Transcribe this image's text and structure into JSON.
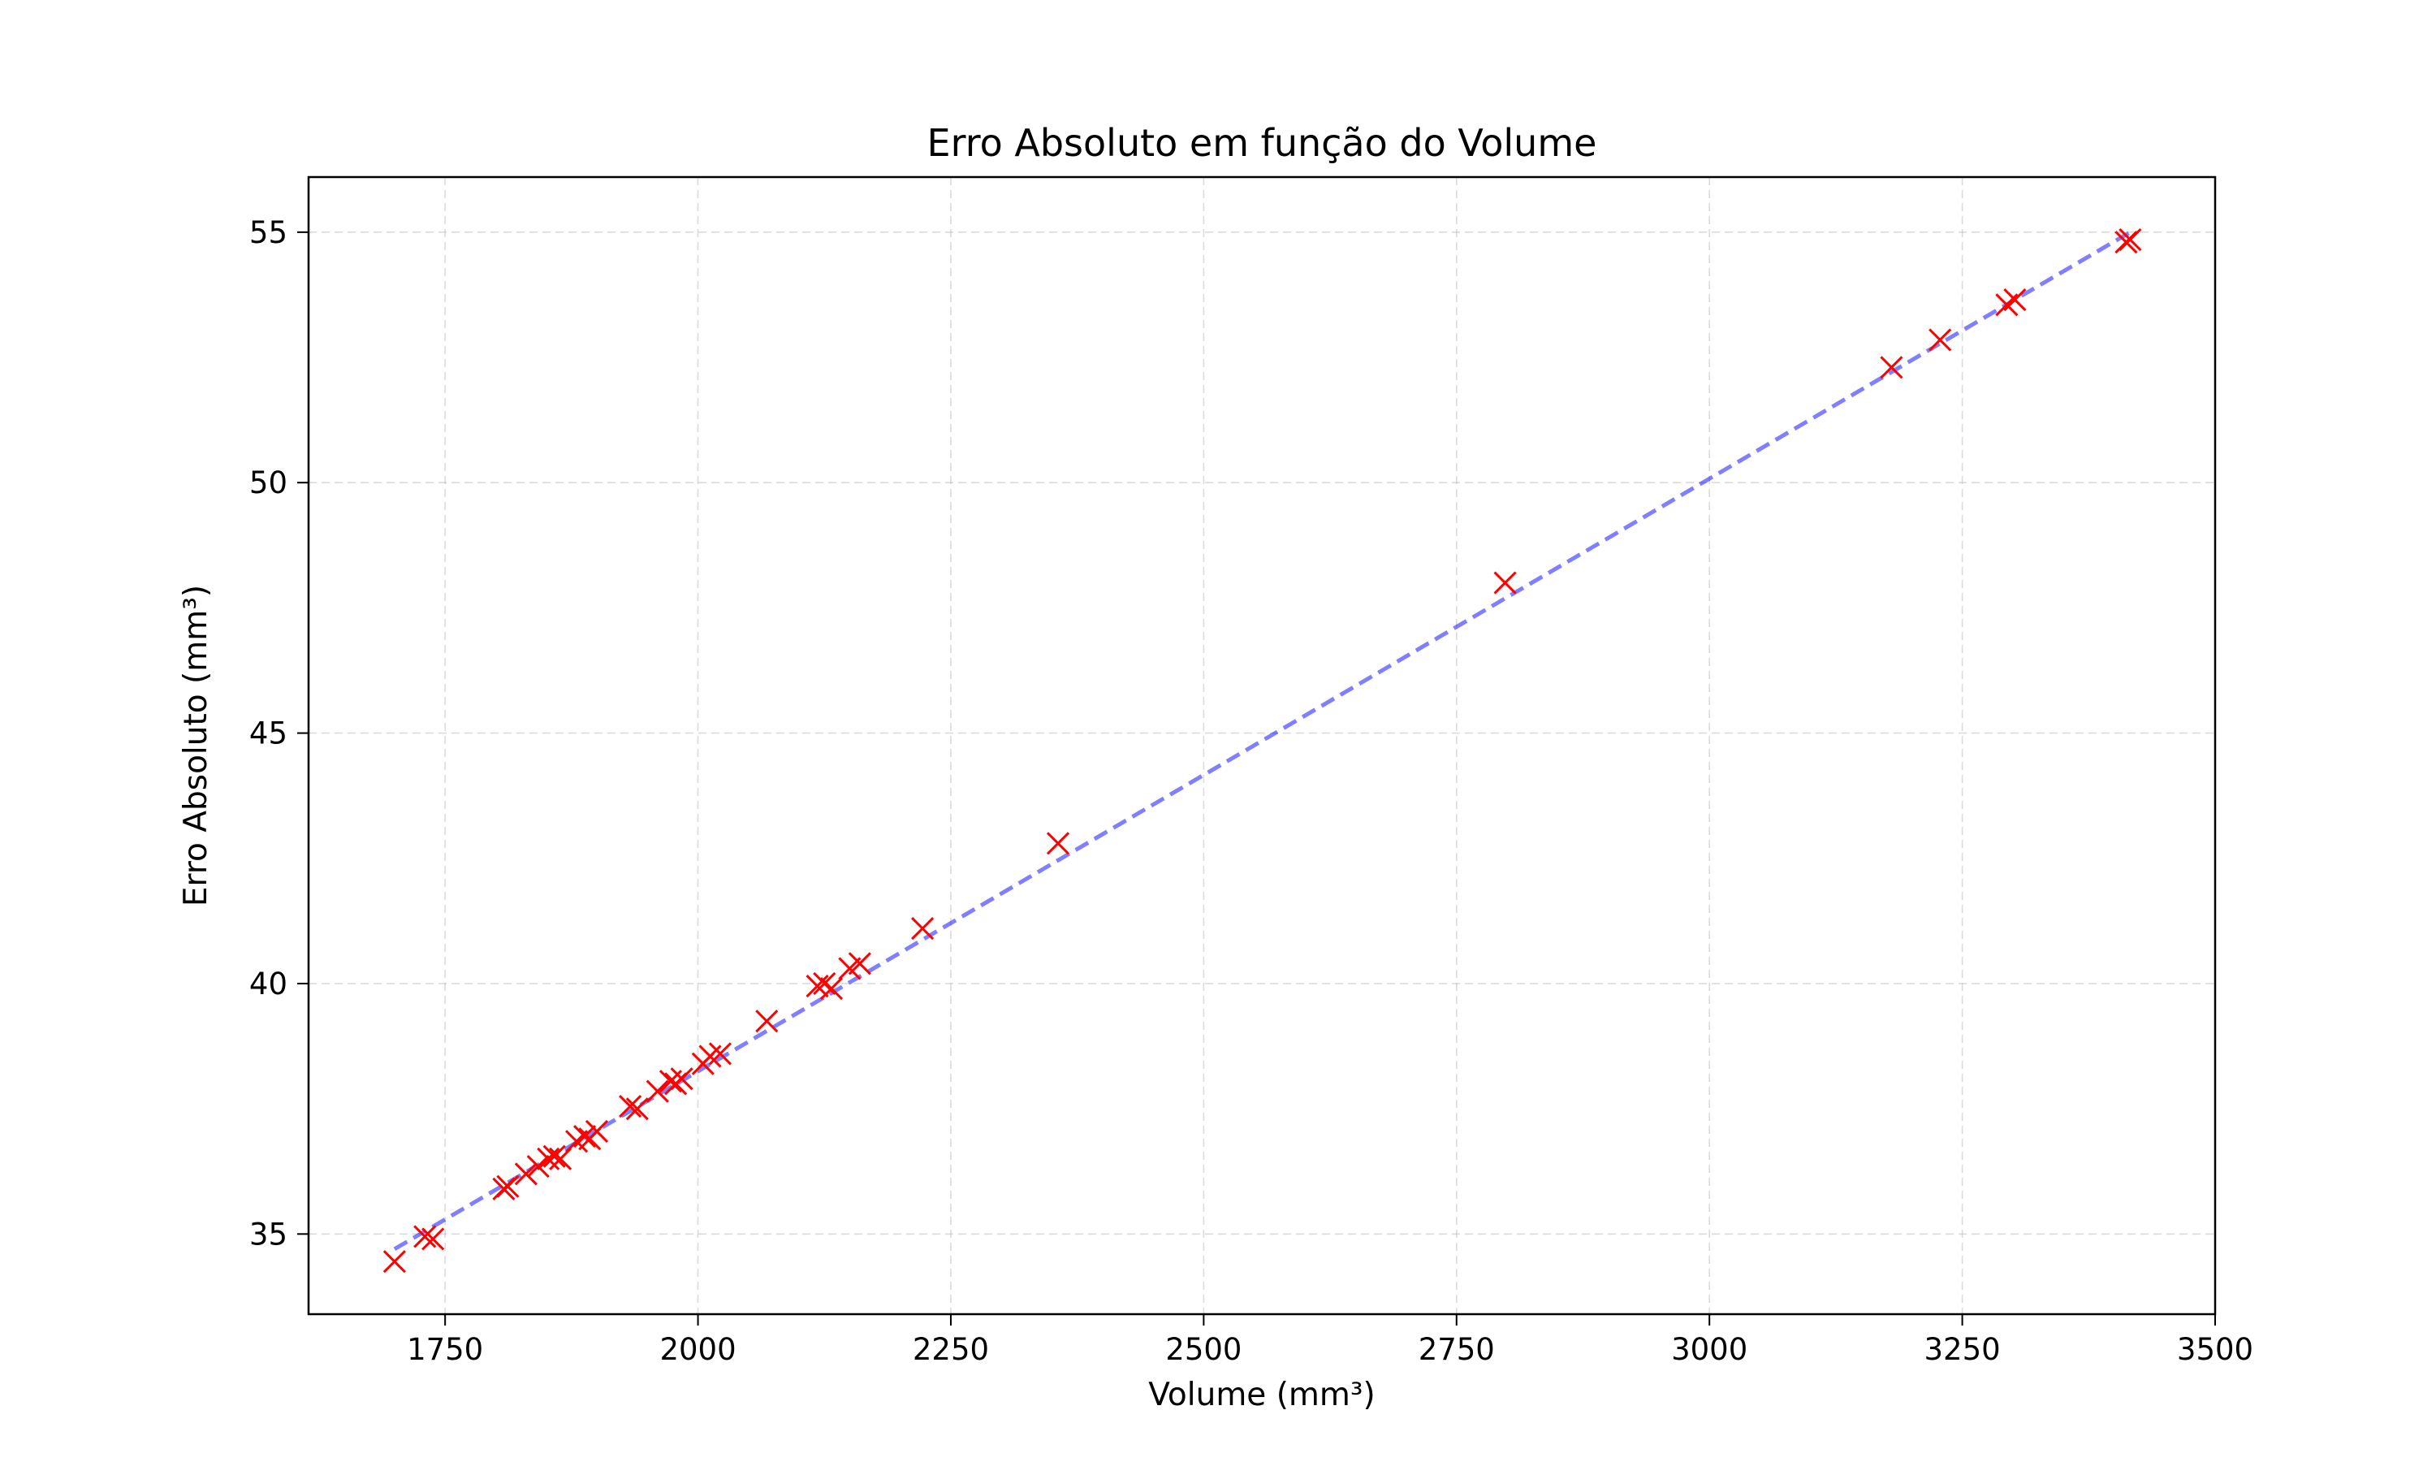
{
  "chart_data": {
    "type": "scatter",
    "title": "Erro Absoluto em função do Volume",
    "xlabel": "Volume (mm³)",
    "ylabel": "Erro Absoluto (mm³)",
    "xlim": [
      1615,
      3500
    ],
    "ylim": [
      33.4,
      56.1
    ],
    "xticks": [
      1750,
      2000,
      2250,
      2500,
      2750,
      3000,
      3250,
      3500
    ],
    "yticks": [
      35,
      40,
      45,
      50,
      55
    ],
    "grid": true,
    "legend": "none",
    "series": [
      {
        "type": "scatter",
        "marker": "x",
        "color": "#ff0000",
        "points": [
          [
            1700,
            34.45
          ],
          [
            1730,
            34.95
          ],
          [
            1738,
            34.9
          ],
          [
            1808,
            35.9
          ],
          [
            1812,
            35.95
          ],
          [
            1830,
            36.2
          ],
          [
            1842,
            36.35
          ],
          [
            1852,
            36.5
          ],
          [
            1858,
            36.55
          ],
          [
            1864,
            36.5
          ],
          [
            1880,
            36.85
          ],
          [
            1888,
            36.95
          ],
          [
            1893,
            36.9
          ],
          [
            1900,
            37.05
          ],
          [
            1933,
            37.55
          ],
          [
            1940,
            37.5
          ],
          [
            1960,
            37.85
          ],
          [
            1973,
            38.05
          ],
          [
            1978,
            38.0
          ],
          [
            1984,
            38.1
          ],
          [
            2005,
            38.4
          ],
          [
            2012,
            38.55
          ],
          [
            2022,
            38.6
          ],
          [
            2068,
            39.25
          ],
          [
            2118,
            39.95
          ],
          [
            2125,
            40.0
          ],
          [
            2132,
            39.9
          ],
          [
            2150,
            40.3
          ],
          [
            2160,
            40.4
          ],
          [
            2222,
            41.1
          ],
          [
            2356,
            42.8
          ],
          [
            2798,
            48.0
          ],
          [
            3180,
            52.3
          ],
          [
            3228,
            52.85
          ],
          [
            3294,
            53.55
          ],
          [
            3302,
            53.65
          ],
          [
            3412,
            54.8
          ],
          [
            3416,
            54.85
          ]
        ]
      },
      {
        "type": "line",
        "style": "dashed",
        "color": "#0000ff",
        "opacity": 0.5,
        "x": [
          1700,
          3416
        ],
        "y": [
          34.7,
          55.0
        ]
      }
    ]
  }
}
